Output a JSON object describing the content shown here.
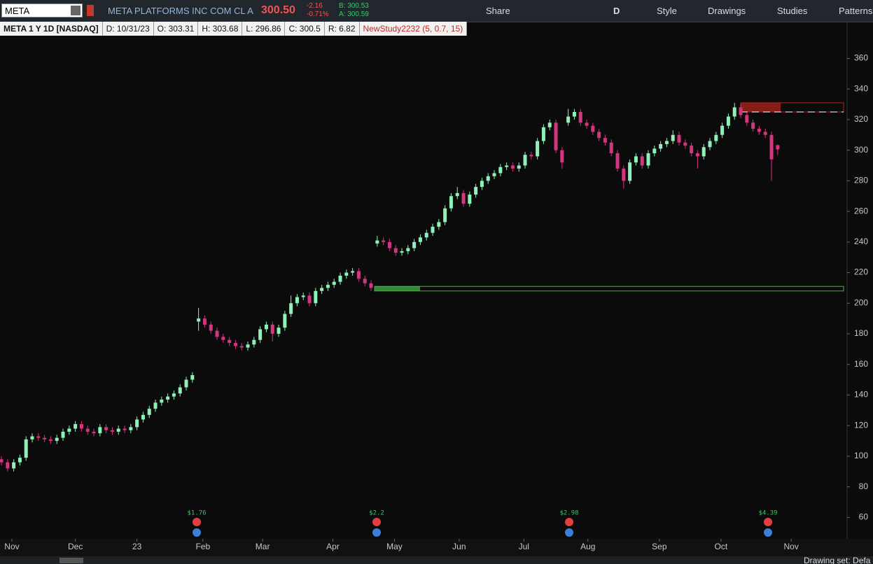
{
  "toolbar": {
    "symbol": "META",
    "description": "META PLATFORMS INC COM CL A",
    "last": "300.50",
    "change": "-2.16",
    "change_pct": "-0.71%",
    "bid": "B: 300.53",
    "ask": "A: 300.59",
    "buttons": [
      "Share",
      "D",
      "Style",
      "Drawings",
      "Studies",
      "Patterns"
    ]
  },
  "info_bar": [
    "META 1 Y 1D [NASDAQ]",
    "D: 10/31/23",
    "O: 303.31",
    "H: 303.68",
    "L: 296.86",
    "C: 300.5",
    "R: 6.82"
  ],
  "study": "NewStudy2232 (5, 0.7, 15)",
  "status": "Drawing set: Defa",
  "chart_data": {
    "type": "candlestick",
    "up_color": "#8ff0b8",
    "down_color": "#d2367f",
    "open": [
      98,
      96,
      92,
      96,
      99,
      111,
      113,
      112,
      111,
      110,
      112,
      116,
      118,
      121,
      118,
      116,
      115,
      119,
      117,
      116,
      118,
      117,
      119,
      124,
      127,
      131,
      135,
      137,
      139,
      141,
      145,
      150,
      188,
      190,
      186,
      182,
      178,
      176,
      174,
      172,
      171,
      173,
      176,
      183,
      186,
      180,
      184,
      193,
      200,
      204,
      205,
      200,
      208,
      210,
      212,
      214,
      218,
      220,
      221,
      216,
      213,
      239,
      241,
      240,
      236,
      233,
      234,
      236,
      240,
      243,
      246,
      250,
      253,
      262,
      270,
      272,
      265,
      271,
      276,
      280,
      283,
      285,
      289,
      290,
      288,
      290,
      297,
      296,
      306,
      315,
      318,
      300,
      318,
      322,
      325,
      318,
      316,
      312,
      308,
      305,
      298,
      288,
      280,
      292,
      296,
      290,
      298,
      301,
      304,
      306,
      310,
      305,
      303,
      298,
      296,
      302,
      306,
      310,
      316,
      322,
      328,
      323,
      318,
      314,
      312,
      310,
      303.31
    ],
    "high": [
      100,
      98,
      98,
      101,
      113,
      115,
      115,
      114,
      113,
      114,
      118,
      120,
      123,
      123,
      120,
      118,
      121,
      121,
      119,
      120,
      120,
      121,
      126,
      129,
      133,
      137,
      139,
      141,
      143,
      147,
      152,
      155,
      197,
      192,
      188,
      184,
      180,
      178,
      176,
      174,
      175,
      178,
      185,
      188,
      188,
      186,
      195,
      205,
      206,
      207,
      207,
      210,
      212,
      214,
      216,
      220,
      222,
      223,
      223,
      218,
      215,
      244,
      243,
      242,
      238,
      236,
      238,
      242,
      245,
      248,
      252,
      255,
      264,
      272,
      276,
      274,
      273,
      278,
      282,
      285,
      287,
      291,
      292,
      292,
      292,
      299,
      299,
      308,
      317,
      320,
      320,
      302,
      327,
      327,
      327,
      320,
      318,
      314,
      310,
      307,
      300,
      290,
      294,
      298,
      298,
      300,
      303,
      306,
      308,
      313,
      312,
      307,
      305,
      300,
      304,
      308,
      312,
      318,
      324,
      331,
      330,
      325,
      320,
      316,
      314,
      312,
      303.68
    ],
    "low": [
      94,
      90,
      90,
      94,
      97,
      109,
      110,
      109,
      108,
      108,
      110,
      114,
      116,
      116,
      114,
      113,
      113,
      115,
      114,
      114,
      115,
      115,
      117,
      122,
      125,
      129,
      133,
      135,
      137,
      139,
      143,
      148,
      182,
      184,
      180,
      176,
      174,
      172,
      170,
      169,
      169,
      171,
      174,
      181,
      175,
      178,
      182,
      191,
      198,
      202,
      198,
      198,
      206,
      208,
      210,
      212,
      216,
      218,
      214,
      211,
      208,
      237,
      238,
      234,
      231,
      231,
      232,
      234,
      238,
      241,
      244,
      248,
      251,
      260,
      268,
      263,
      263,
      269,
      274,
      278,
      281,
      283,
      287,
      286,
      286,
      288,
      294,
      294,
      304,
      313,
      298,
      288,
      316,
      320,
      316,
      314,
      310,
      306,
      303,
      296,
      286,
      275,
      278,
      290,
      288,
      288,
      296,
      299,
      302,
      304,
      303,
      301,
      296,
      288,
      294,
      300,
      304,
      308,
      314,
      320,
      321,
      316,
      312,
      310,
      308,
      280,
      296.86
    ],
    "close": [
      96,
      92,
      96,
      99,
      111,
      113,
      112,
      111,
      110,
      112,
      116,
      118,
      121,
      118,
      116,
      115,
      119,
      117,
      116,
      118,
      117,
      119,
      124,
      127,
      131,
      135,
      137,
      139,
      141,
      145,
      150,
      153,
      190,
      186,
      182,
      178,
      176,
      174,
      172,
      171,
      173,
      176,
      183,
      186,
      180,
      184,
      193,
      200,
      204,
      205,
      200,
      208,
      210,
      212,
      214,
      218,
      220,
      221,
      216,
      213,
      210,
      241,
      240,
      236,
      233,
      234,
      236,
      240,
      243,
      246,
      250,
      253,
      262,
      270,
      272,
      265,
      271,
      276,
      280,
      283,
      285,
      289,
      290,
      288,
      290,
      297,
      296,
      306,
      315,
      318,
      300,
      292,
      322,
      325,
      318,
      316,
      312,
      308,
      305,
      298,
      288,
      280,
      292,
      296,
      290,
      298,
      301,
      304,
      306,
      310,
      305,
      303,
      298,
      296,
      302,
      306,
      310,
      316,
      322,
      328,
      323,
      318,
      314,
      312,
      310,
      294,
      300.5
    ],
    "xlim": [
      -0.23,
      137.27
    ],
    "xticks": [
      {
        "value": 1.7,
        "label": "Nov"
      },
      {
        "value": 12,
        "label": "Dec"
      },
      {
        "value": 22,
        "label": "23"
      },
      {
        "value": 32.7,
        "label": "Feb"
      },
      {
        "value": 42.4,
        "label": "Mar"
      },
      {
        "value": 53.8,
        "label": "Apr"
      },
      {
        "value": 63.8,
        "label": "May"
      },
      {
        "value": 74.3,
        "label": "Jun"
      },
      {
        "value": 84.8,
        "label": "Jul"
      },
      {
        "value": 95.2,
        "label": "Aug"
      },
      {
        "value": 106.8,
        "label": "Sep"
      },
      {
        "value": 116.8,
        "label": "Oct"
      },
      {
        "value": 128.2,
        "label": "Nov"
      }
    ],
    "ylim": [
      46,
      384
    ],
    "yticks": [
      60,
      80,
      100,
      120,
      140,
      160,
      180,
      200,
      220,
      240,
      260,
      280,
      300,
      320,
      340,
      360
    ],
    "zones": [
      {
        "low": 208,
        "high": 211,
        "color": "#3fb53f"
      },
      {
        "low": 325,
        "high": 331,
        "color": "#b0261c"
      }
    ],
    "dividends": [
      "$1.76",
      "$2.2",
      "$2.98",
      "$4.39"
    ]
  }
}
